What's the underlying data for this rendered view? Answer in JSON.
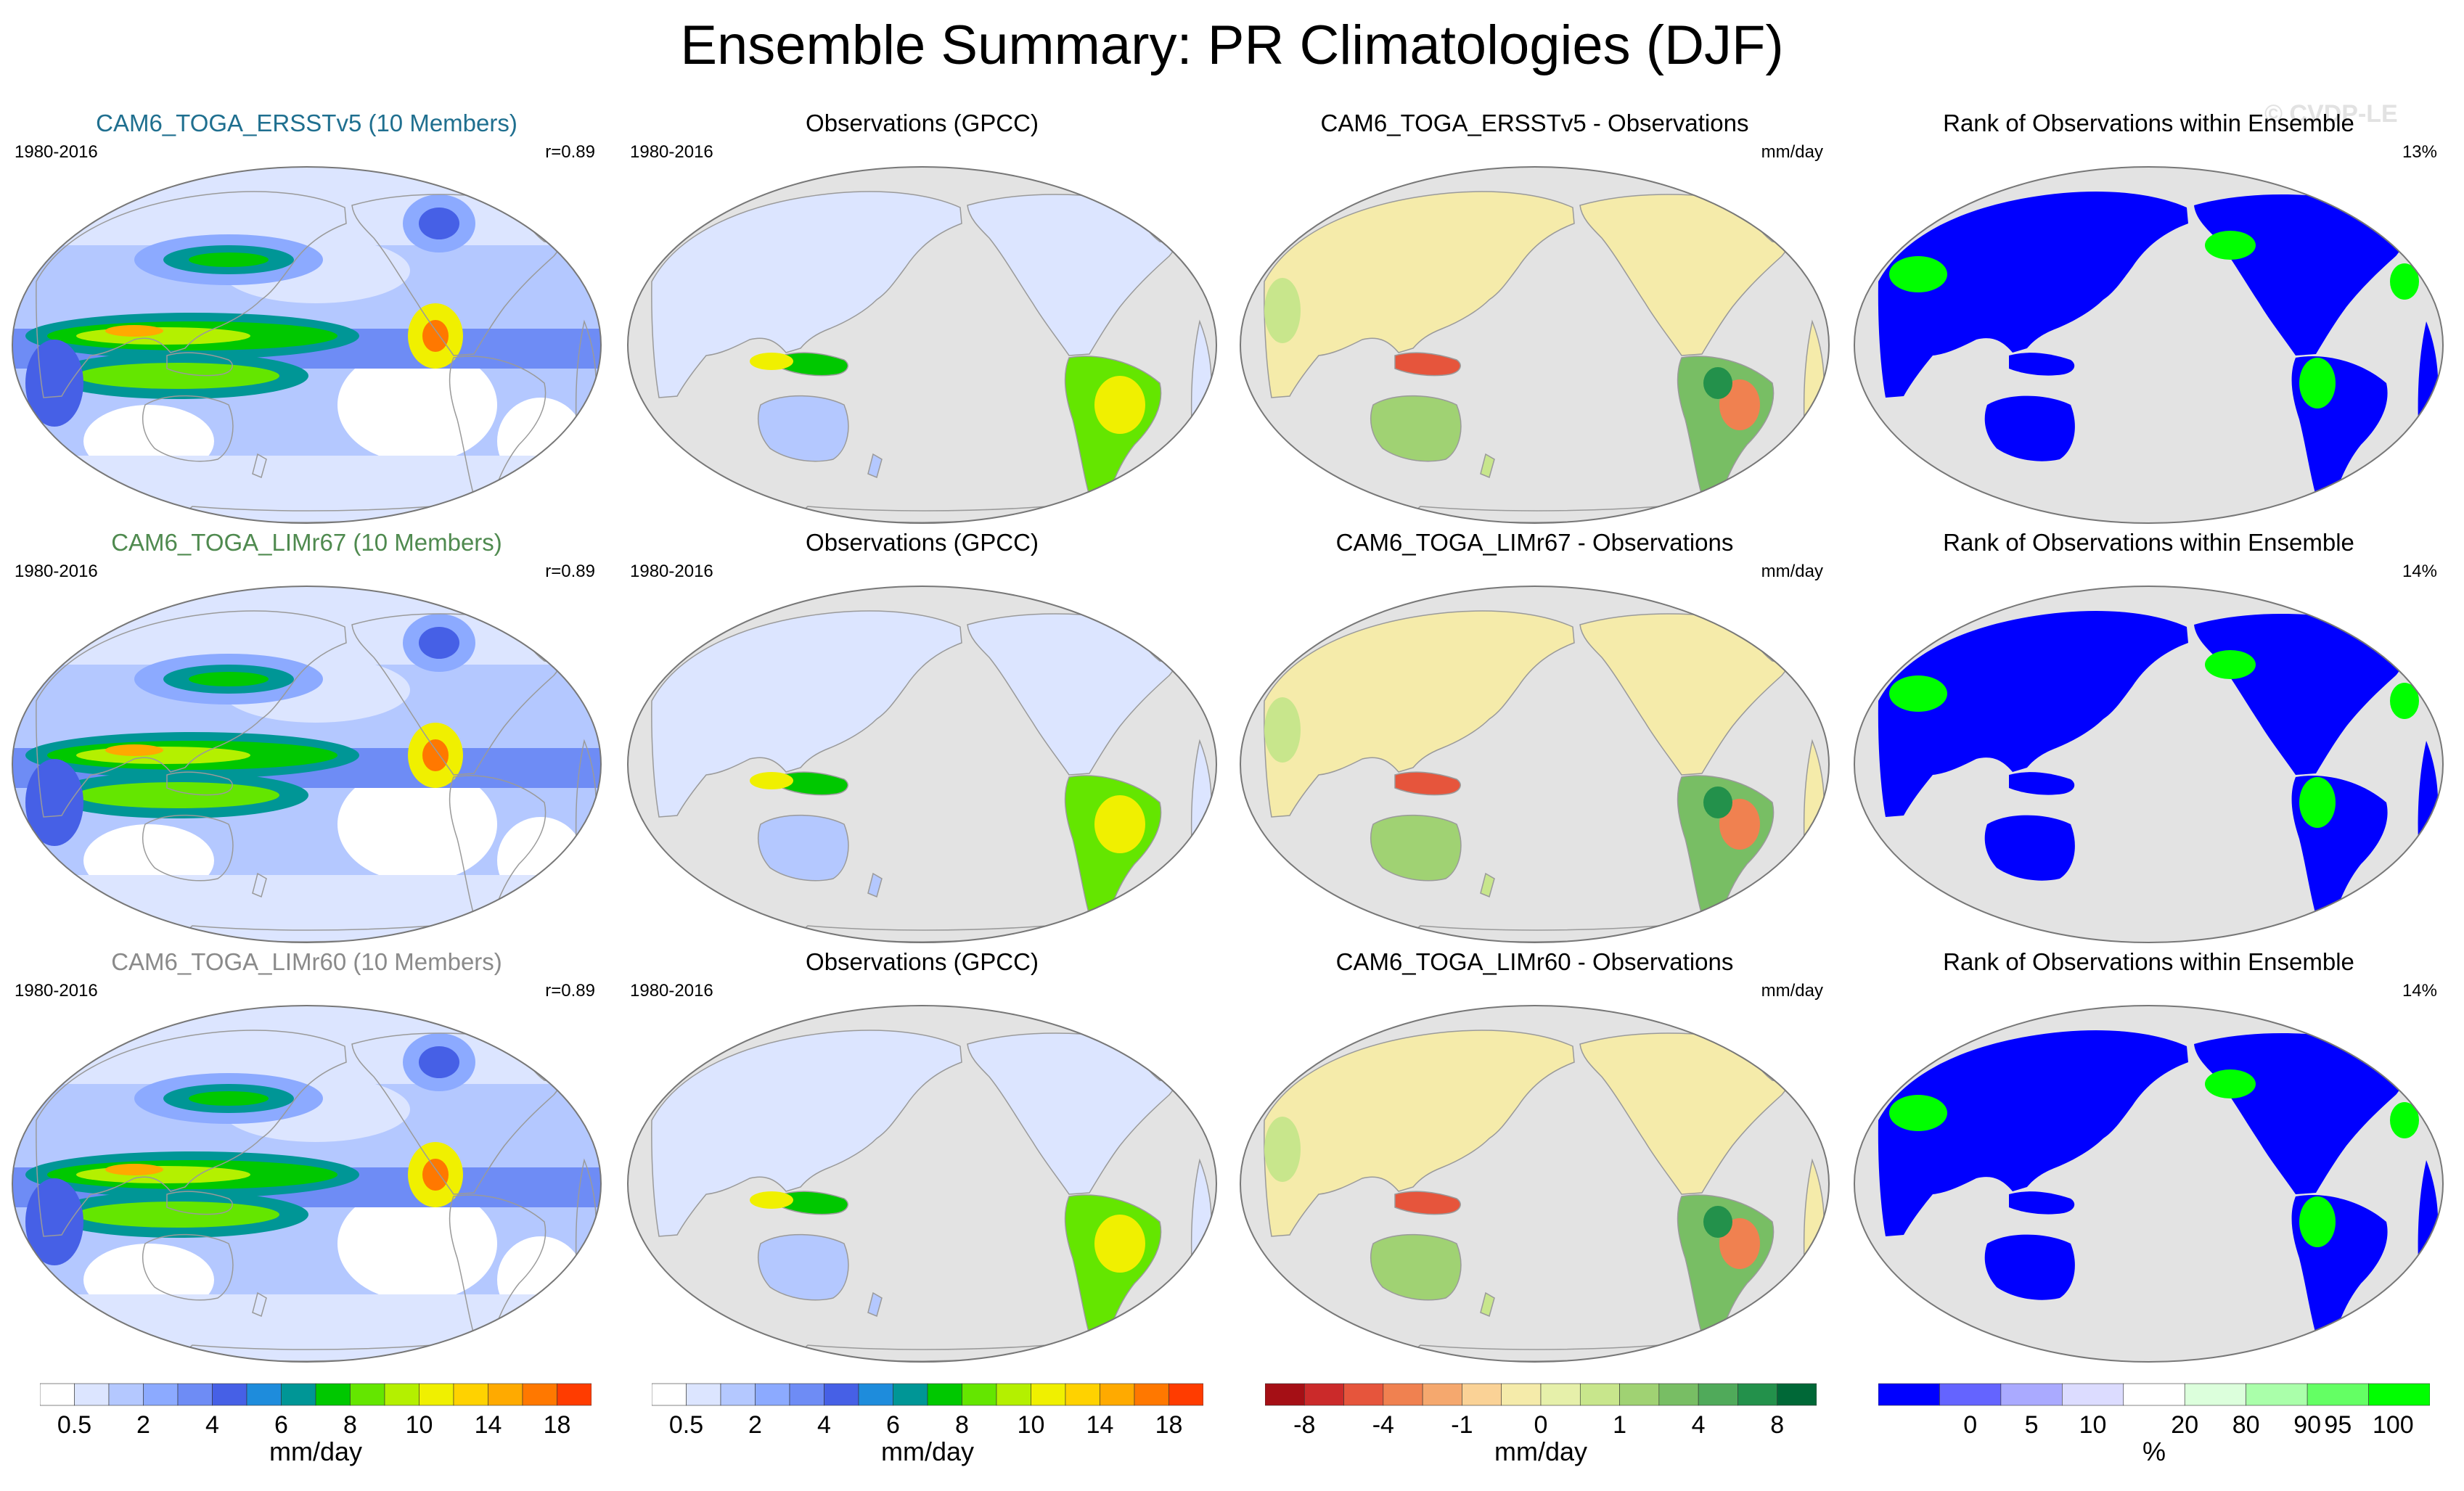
{
  "title": "Ensemble Summary: PR Climatologies (DJF)",
  "watermark": "© CVDP-LE",
  "colors": {
    "ocean_gray": "#e3e3e3",
    "land_outline": "#9a9a9a",
    "model1_title": "#1f6f8f",
    "model2_title": "#4f8a4f",
    "model3_title": "#8a8a8a",
    "rank_low": "#0000ff",
    "rank_high": "#00ff00"
  },
  "rows": [
    {
      "model_title": "CAM6_TOGA_ERSSTv5 (10 Members)",
      "model_title_color": "#1f6f8f",
      "model_years": "1980-2016",
      "model_r": "r=0.89",
      "obs_title": "Observations (GPCC)",
      "obs_years": "1980-2016",
      "diff_title": "CAM6_TOGA_ERSSTv5 - Observations",
      "diff_units": "mm/day",
      "rank_title": "Rank of Observations within Ensemble",
      "rank_pct": "13%"
    },
    {
      "model_title": "CAM6_TOGA_LIMr67 (10 Members)",
      "model_title_color": "#4f8a4f",
      "model_years": "1980-2016",
      "model_r": "r=0.89",
      "obs_title": "Observations (GPCC)",
      "obs_years": "1980-2016",
      "diff_title": "CAM6_TOGA_LIMr67 - Observations",
      "diff_units": "mm/day",
      "rank_title": "Rank of Observations within Ensemble",
      "rank_pct": "14%"
    },
    {
      "model_title": "CAM6_TOGA_LIMr60 (10 Members)",
      "model_title_color": "#8a8a8a",
      "model_years": "1980-2016",
      "model_r": "r=0.89",
      "obs_title": "Observations (GPCC)",
      "obs_years": "1980-2016",
      "diff_title": "CAM6_TOGA_LIMr60 - Observations",
      "diff_units": "mm/day",
      "rank_title": "Rank of Observations within Ensemble",
      "rank_pct": "14%"
    }
  ],
  "chart_data": {
    "type": "heatmap",
    "description_of_layout": "3x4 grid of Robinson-projection global maps (Pacific-centered)",
    "colorbars": [
      {
        "id": "precip_model",
        "units": "mm/day",
        "tick_labels": [
          "0.5",
          "2",
          "4",
          "6",
          "8",
          "10",
          "14",
          "18"
        ],
        "colors": [
          "#ffffff",
          "#dce5ff",
          "#b4c8ff",
          "#8caaff",
          "#6e8cf5",
          "#4660e6",
          "#1e8cdc",
          "#009696",
          "#00c800",
          "#64e600",
          "#b4f000",
          "#f0f000",
          "#ffd200",
          "#ffaa00",
          "#ff7800",
          "#ff3c00"
        ]
      },
      {
        "id": "precip_obs",
        "units": "mm/day",
        "tick_labels": [
          "0.5",
          "2",
          "4",
          "6",
          "8",
          "10",
          "14",
          "18"
        ],
        "colors": [
          "#ffffff",
          "#dce5ff",
          "#b4c8ff",
          "#8caaff",
          "#6e8cf5",
          "#4660e6",
          "#1e8cdc",
          "#009696",
          "#00c800",
          "#64e600",
          "#b4f000",
          "#f0f000",
          "#ffd200",
          "#ffaa00",
          "#ff7800",
          "#ff3c00"
        ]
      },
      {
        "id": "difference",
        "units": "mm/day",
        "tick_labels": [
          "-8",
          "-4",
          "-1",
          "0",
          "1",
          "4",
          "8"
        ],
        "colors": [
          "#a50f15",
          "#cb2a2a",
          "#e6553c",
          "#f08150",
          "#f5a86e",
          "#fad296",
          "#f5ebaa",
          "#e6f0aa",
          "#c8e68c",
          "#a0d273",
          "#78be64",
          "#50aa5a",
          "#23914b",
          "#006837"
        ]
      },
      {
        "id": "rank",
        "units": "%",
        "tick_labels": [
          "0",
          "5",
          "10",
          "20",
          "80",
          "90",
          "95",
          "100"
        ],
        "colors": [
          "#0000ff",
          "#6464ff",
          "#aaaaff",
          "#dcdcff",
          "#ffffff",
          "#dcffdc",
          "#aaffaa",
          "#64ff64",
          "#00ff00"
        ]
      }
    ]
  }
}
